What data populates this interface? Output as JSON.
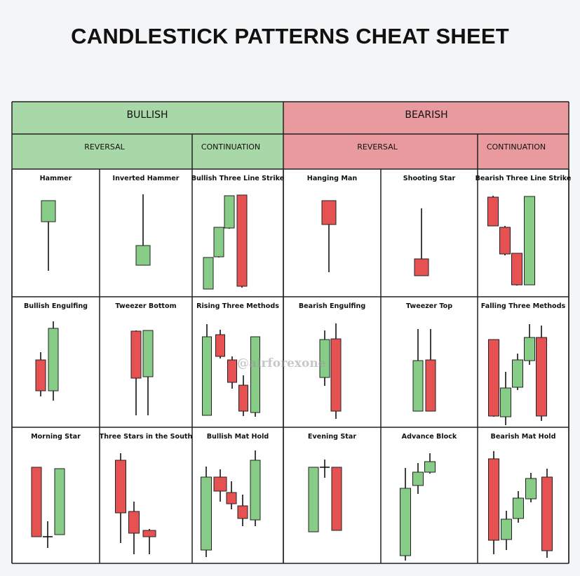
{
  "title": "CANDLESTICK PATTERNS CHEAT SHEET",
  "watermark": "@airforexone",
  "colors": {
    "bullish_header": "#a8d8a8",
    "bearish_header": "#e89a9e",
    "green": "#87cc87",
    "red": "#e65252",
    "border": "#222222"
  },
  "groups": [
    {
      "label": "BULLISH",
      "reversal": "REVERSAL",
      "continuation": "CONTINUATION"
    },
    {
      "label": "BEARISH",
      "reversal": "REVERSAL",
      "continuation": "CONTINUATION"
    }
  ],
  "patterns": [
    [
      "Hammer",
      "Inverted Hammer",
      "Bullish Three Line Strike",
      "Hanging Man",
      "Shooting Star",
      "Bearish Three Line Strike"
    ],
    [
      "Bullish Engulfing",
      "Tweezer Bottom",
      "Rising Three Methods",
      "Bearish Engulfing",
      "Tweezer Top",
      "Falling Three Methods"
    ],
    [
      "Morning Star",
      "Three Stars in the South",
      "Bullish Mat Hold",
      "Evening Star",
      "Advance Block",
      "Bearish Mat Hold"
    ]
  ]
}
